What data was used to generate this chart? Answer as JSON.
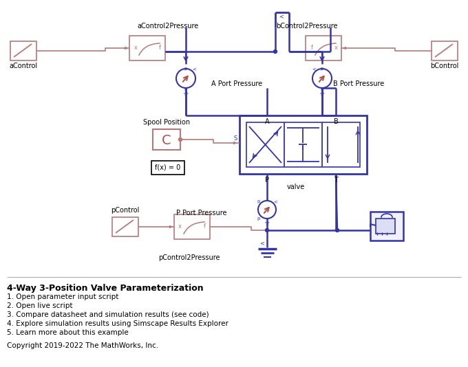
{
  "title": "4-Way 3-Position Valve Parameterization",
  "bullets": [
    "1. Open parameter input script",
    "2. Open live script",
    "3. Compare datasheet and simulation results (see code)",
    "4. Explore simulation results using Simscape Results Explorer",
    "5. Learn more about this example"
  ],
  "copyright": "Copyright 2019-2022 The MathWorks, Inc.",
  "bg_color": "#ffffff",
  "pink": "#b87878",
  "blue": "#3333aa",
  "dark_pink": "#b05050",
  "black": "#000000"
}
